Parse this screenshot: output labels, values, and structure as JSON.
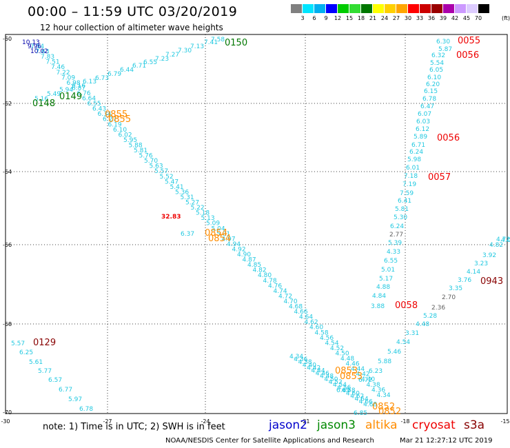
{
  "title": "00:00 – 11:59 UTC 03/20/2019",
  "subtitle": "12 hour collection of altimeter wave heights",
  "colorbar": {
    "colors": [
      "#808080",
      "#00e5ff",
      "#00b0f0",
      "#0000ff",
      "#00cc00",
      "#33dd33",
      "#007700",
      "#ffff00",
      "#ffd000",
      "#ffa500",
      "#ff0000",
      "#cc0000",
      "#990000",
      "#aa00aa",
      "#cc99ff",
      "#ddccff",
      "#000000"
    ],
    "labels": [
      "3",
      "6",
      "9",
      "12",
      "15",
      "18",
      "21",
      "24",
      "27",
      "30",
      "33",
      "36",
      "39",
      "42",
      "45",
      "70"
    ],
    "unit": "(ft)"
  },
  "axes": {
    "lat_labels": [
      "-60",
      "-62",
      "-64",
      "-66",
      "-68",
      "-70"
    ],
    "lon_labels": [
      "-30",
      "-27",
      "-24",
      "-21",
      "-18",
      "-15"
    ]
  },
  "tracks": {
    "cyan": "#20c8e0",
    "dark_blue": "#0000aa",
    "green": "#007700",
    "red": "#ee0000",
    "orange": "#ff8c00",
    "maroon": "#880000",
    "gray": "#606060"
  },
  "track_labels": [
    {
      "text": "0150",
      "color": "green"
    },
    {
      "text": "0149",
      "color": "green"
    },
    {
      "text": "0148",
      "color": "green"
    },
    {
      "text": "0855",
      "color": "orange"
    },
    {
      "text": "0855",
      "color": "orange"
    },
    {
      "text": "0854",
      "color": "orange"
    },
    {
      "text": "0854",
      "color": "orange"
    },
    {
      "text": "0853",
      "color": "orange"
    },
    {
      "text": "0853",
      "color": "orange"
    },
    {
      "text": "0852",
      "color": "orange"
    },
    {
      "text": "0852",
      "color": "orange"
    },
    {
      "text": "0055",
      "color": "red"
    },
    {
      "text": "0056",
      "color": "red"
    },
    {
      "text": "0056",
      "color": "red"
    },
    {
      "text": "0057",
      "color": "red"
    },
    {
      "text": "0058",
      "color": "red"
    },
    {
      "text": "0943",
      "color": "maroon"
    },
    {
      "text": "0129",
      "color": "maroon"
    }
  ],
  "values": [
    {
      "t": "10.13",
      "c": "dark_blue"
    },
    {
      "t": "9.96",
      "c": "dark_blue"
    },
    {
      "t": "10.02",
      "c": "dark_blue"
    },
    {
      "t": "7.58",
      "c": "cyan"
    },
    {
      "t": "7.41",
      "c": "cyan"
    },
    {
      "t": "7.13",
      "c": "cyan"
    },
    {
      "t": "7.30",
      "c": "cyan"
    },
    {
      "t": "7.27",
      "c": "cyan"
    },
    {
      "t": "7.23",
      "c": "cyan"
    },
    {
      "t": "6.55",
      "c": "cyan"
    },
    {
      "t": "6.71",
      "c": "cyan"
    },
    {
      "t": "6.44",
      "c": "cyan"
    },
    {
      "t": "6.79",
      "c": "cyan"
    },
    {
      "t": "6.73",
      "c": "cyan"
    },
    {
      "t": "6.13",
      "c": "cyan"
    },
    {
      "t": "6.16",
      "c": "cyan"
    },
    {
      "t": "5.94",
      "c": "cyan"
    },
    {
      "t": "5.49",
      "c": "cyan"
    },
    {
      "t": "5.16",
      "c": "cyan"
    },
    {
      "t": "32.83",
      "c": "red"
    },
    {
      "t": "6.37",
      "c": "cyan"
    },
    {
      "t": "6.30",
      "c": "cyan"
    },
    {
      "t": "5.87",
      "c": "cyan"
    },
    {
      "t": "6.32",
      "c": "cyan"
    },
    {
      "t": "5.54",
      "c": "cyan"
    },
    {
      "t": "6.05",
      "c": "cyan"
    },
    {
      "t": "6.10",
      "c": "cyan"
    },
    {
      "t": "6.20",
      "c": "cyan"
    },
    {
      "t": "6.15",
      "c": "cyan"
    },
    {
      "t": "6.78",
      "c": "cyan"
    },
    {
      "t": "6.47",
      "c": "cyan"
    },
    {
      "t": "6.07",
      "c": "cyan"
    },
    {
      "t": "6.03",
      "c": "cyan"
    },
    {
      "t": "6.12",
      "c": "cyan"
    },
    {
      "t": "5.89",
      "c": "cyan"
    },
    {
      "t": "6.71",
      "c": "cyan"
    },
    {
      "t": "6.24",
      "c": "cyan"
    },
    {
      "t": "5.98",
      "c": "cyan"
    },
    {
      "t": "6.01",
      "c": "cyan"
    },
    {
      "t": "7.18",
      "c": "cyan"
    },
    {
      "t": "7.19",
      "c": "cyan"
    },
    {
      "t": "7.59",
      "c": "cyan"
    },
    {
      "t": "6.41",
      "c": "cyan"
    },
    {
      "t": "5.81",
      "c": "cyan"
    },
    {
      "t": "5.30",
      "c": "cyan"
    },
    {
      "t": "6.24",
      "c": "cyan"
    },
    {
      "t": "2.77",
      "c": "gray"
    },
    {
      "t": "5.39",
      "c": "cyan"
    },
    {
      "t": "4.33",
      "c": "cyan"
    },
    {
      "t": "6.55",
      "c": "cyan"
    },
    {
      "t": "5.01",
      "c": "cyan"
    },
    {
      "t": "5.17",
      "c": "cyan"
    },
    {
      "t": "4.88",
      "c": "cyan"
    },
    {
      "t": "4.84",
      "c": "cyan"
    },
    {
      "t": "3.88",
      "c": "cyan"
    },
    {
      "t": "4.00",
      "c": "cyan"
    },
    {
      "t": "4.72",
      "c": "cyan"
    },
    {
      "t": "4.82",
      "c": "cyan"
    },
    {
      "t": "3.92",
      "c": "cyan"
    },
    {
      "t": "3.23",
      "c": "cyan"
    },
    {
      "t": "4.14",
      "c": "cyan"
    },
    {
      "t": "3.76",
      "c": "cyan"
    },
    {
      "t": "3.35",
      "c": "cyan"
    },
    {
      "t": "2.70",
      "c": "gray"
    },
    {
      "t": "2.36",
      "c": "gray"
    },
    {
      "t": "5.28",
      "c": "cyan"
    },
    {
      "t": "4.48",
      "c": "cyan"
    },
    {
      "t": "3.31",
      "c": "cyan"
    },
    {
      "t": "4.54",
      "c": "cyan"
    },
    {
      "t": "5.46",
      "c": "cyan"
    },
    {
      "t": "5.88",
      "c": "cyan"
    },
    {
      "t": "6.23",
      "c": "cyan"
    },
    {
      "t": "6.72",
      "c": "cyan"
    },
    {
      "t": "6.69",
      "c": "cyan"
    },
    {
      "t": "6.85",
      "c": "cyan"
    },
    {
      "t": "5.57",
      "c": "cyan"
    },
    {
      "t": "6.25",
      "c": "cyan"
    },
    {
      "t": "5.61",
      "c": "cyan"
    },
    {
      "t": "5.77",
      "c": "cyan"
    },
    {
      "t": "6.57",
      "c": "cyan"
    },
    {
      "t": "6.77",
      "c": "cyan"
    },
    {
      "t": "5.97",
      "c": "cyan"
    },
    {
      "t": "6.78",
      "c": "cyan"
    }
  ],
  "note": "note: 1) Time is in UTC; 2) SWH is in feet",
  "legend": [
    {
      "label": "jason2",
      "color": "#0000cc"
    },
    {
      "label": "jason3",
      "color": "#008800"
    },
    {
      "label": "altika",
      "color": "#ff8c00"
    },
    {
      "label": "cryosat",
      "color": "#ee0000"
    },
    {
      "label": "s3a",
      "color": "#880000"
    }
  ],
  "footer": "NOAA/NESDIS Center for Satellite Applications and Research",
  "footer_date": "Mar 21 12:27:12 UTC 2019"
}
